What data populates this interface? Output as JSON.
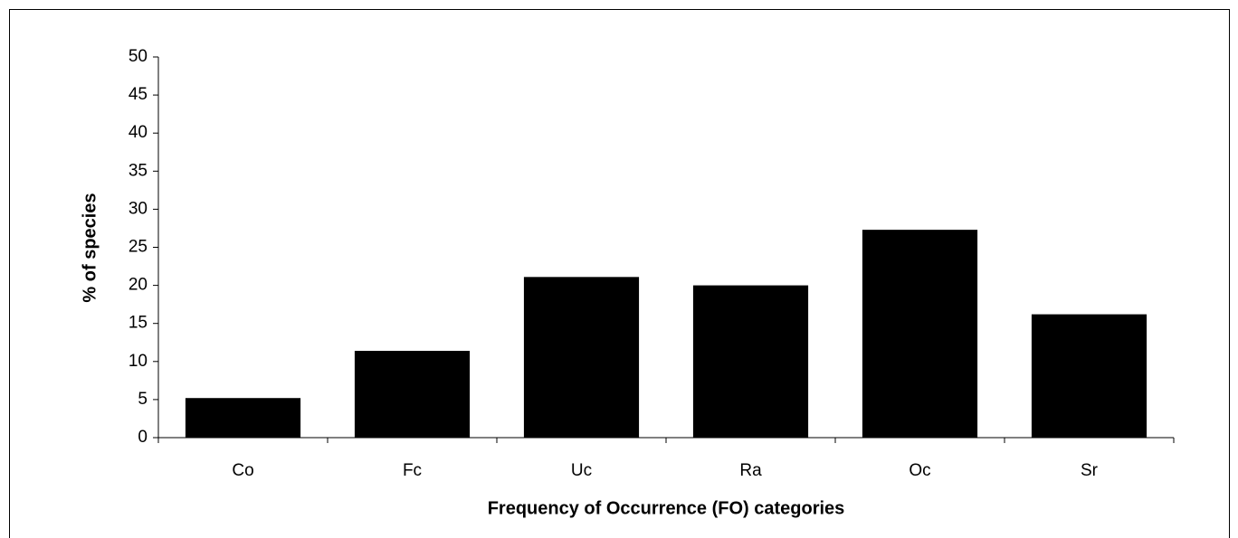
{
  "chart_data": {
    "type": "bar",
    "x_label": "Frequency of Occurrence (FO) categories",
    "y_label": "% of species",
    "categories": [
      "Co",
      "Fc",
      "Uc",
      "Ra",
      "Oc",
      "Sr"
    ],
    "values": [
      5.2,
      11.4,
      21.1,
      20,
      27.3,
      16.2
    ],
    "color": "#000000",
    "ylim": [
      0,
      50
    ],
    "yticks": [
      0,
      5,
      10,
      15,
      20,
      25,
      30,
      35,
      40,
      45,
      50
    ],
    "grid": false
  }
}
